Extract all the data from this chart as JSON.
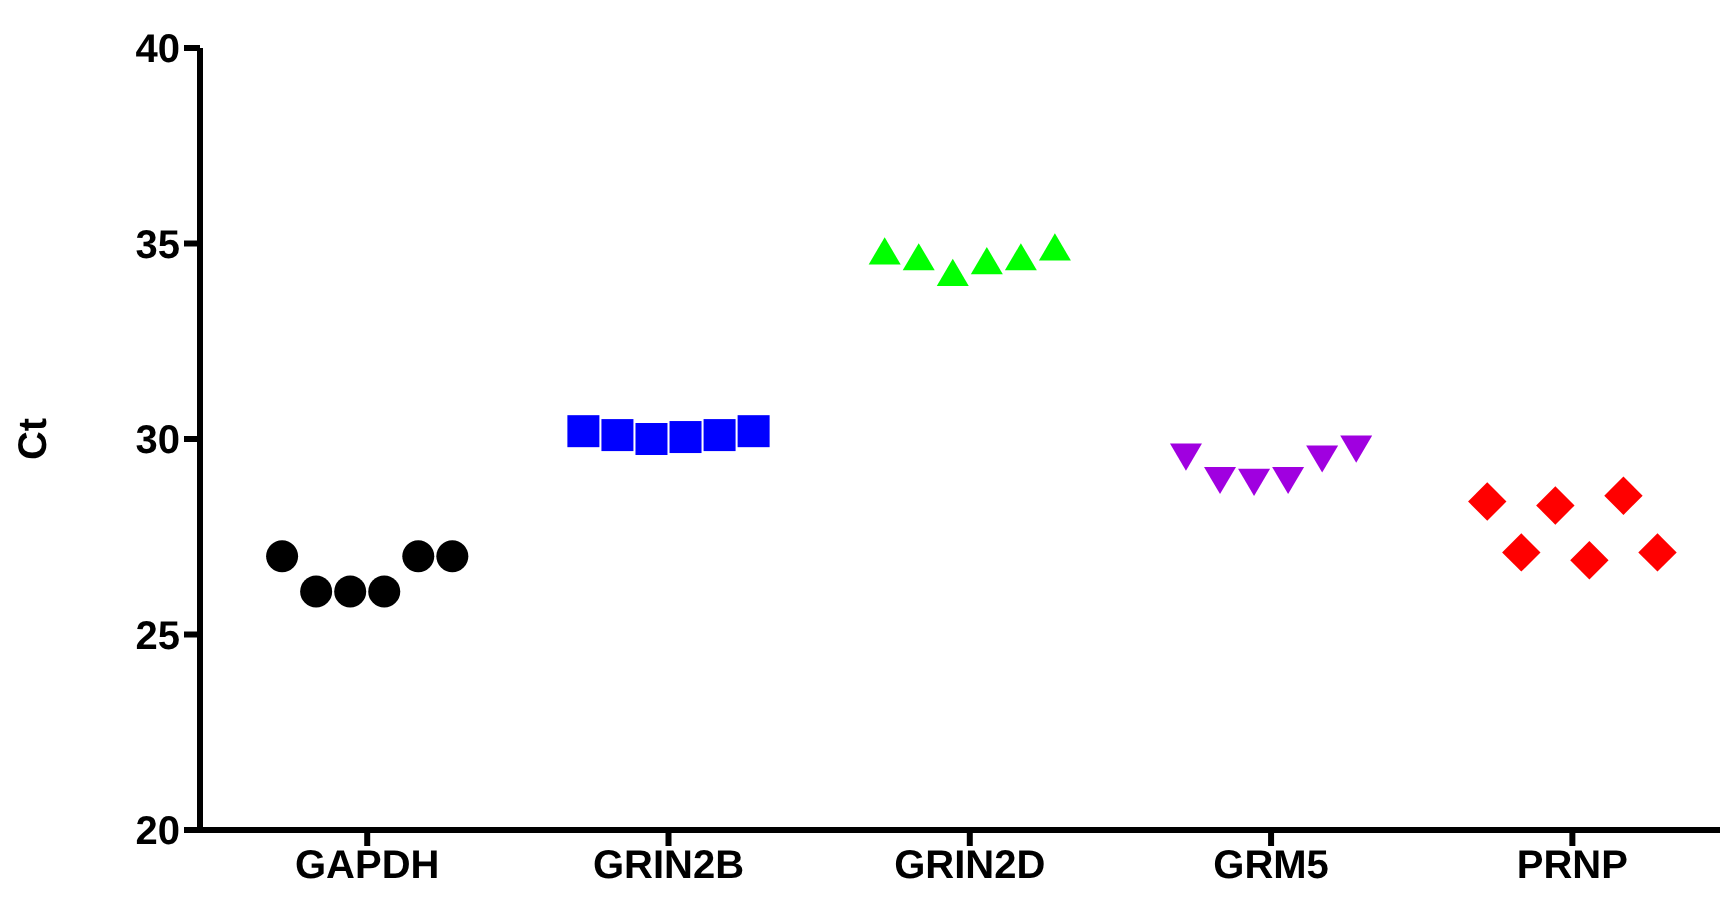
{
  "chart_data": {
    "type": "scatter",
    "ylabel": "Ct",
    "categories": [
      "GAPDH",
      "GRIN2B",
      "GRIN2D",
      "GRM5",
      "PRNP"
    ],
    "ylim": [
      20,
      40
    ],
    "yticks": [
      20,
      25,
      30,
      35,
      40
    ],
    "grid": false,
    "legend": false,
    "series": [
      {
        "color": "#000000",
        "marker": "circle",
        "x": [
          "GAPDH",
          "GAPDH",
          "GAPDH",
          "GAPDH",
          "GAPDH",
          "GAPDH"
        ],
        "values": [
          27.0,
          26.1,
          26.1,
          26.1,
          27.0,
          27.0
        ]
      },
      {
        "color": "#0000ff",
        "marker": "square",
        "x": [
          "GRIN2B",
          "GRIN2B",
          "GRIN2B",
          "GRIN2B",
          "GRIN2B",
          "GRIN2B"
        ],
        "values": [
          30.2,
          30.1,
          30.0,
          30.05,
          30.1,
          30.2
        ]
      },
      {
        "color": "#00ff00",
        "marker": "triangle",
        "x": [
          "GRIN2D",
          "GRIN2D",
          "GRIN2D",
          "GRIN2D",
          "GRIN2D",
          "GRIN2D"
        ],
        "values": [
          34.75,
          34.6,
          34.2,
          34.5,
          34.6,
          34.85
        ]
      },
      {
        "color": "#a000e0",
        "marker": "triangle-down",
        "x": [
          "GRM5",
          "GRM5",
          "GRM5",
          "GRM5",
          "GRM5",
          "GRM5"
        ],
        "values": [
          29.6,
          29.0,
          28.95,
          29.0,
          29.55,
          29.8
        ]
      },
      {
        "color": "#ff0000",
        "marker": "diamond",
        "x": [
          "PRNP",
          "PRNP",
          "PRNP",
          "PRNP",
          "PRNP",
          "PRNP"
        ],
        "values": [
          28.4,
          27.1,
          28.3,
          26.9,
          28.55,
          27.1
        ]
      }
    ]
  }
}
